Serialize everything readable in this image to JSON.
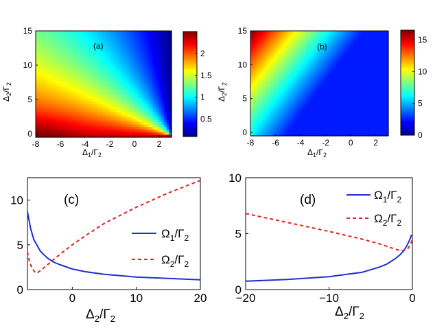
{
  "chart_data": [
    {
      "panel": "(a)",
      "type": "heatmap",
      "xlabel": "Δ1/Γ2",
      "ylabel": "Δ2/Γ2",
      "xlim": [
        -8,
        3
      ],
      "ylim": [
        -0.5,
        15
      ],
      "x_ticks": [
        "-8",
        "-6",
        "-4",
        "-2",
        "0",
        "2"
      ],
      "x_tick_values": [
        -8,
        -6,
        -4,
        -2,
        0,
        2
      ],
      "y_ticks": [
        "0",
        "5",
        "10",
        "15"
      ],
      "y_tick_values": [
        0,
        5,
        10,
        15
      ],
      "colorbar": {
        "range": [
          0.1,
          2.5
        ],
        "ticks": [
          "0.5",
          "1",
          "1.5",
          "2"
        ],
        "tick_values": [
          0.5,
          1,
          1.5,
          2
        ],
        "colormap": "jet"
      },
      "description_of_field": "max at lower-left (≈2.4), decreasing toward (3, 0) where value ≈0.1; iso-lines radiate from the point (3, 0)"
    },
    {
      "panel": "(b)",
      "type": "heatmap",
      "xlabel": "Δ1/Γ2",
      "ylabel": "Δ2/Γ2",
      "xlim": [
        -8,
        3
      ],
      "ylim": [
        -0.5,
        15
      ],
      "x_ticks": [
        "-8",
        "-6",
        "-4",
        "-2",
        "0",
        "2"
      ],
      "x_tick_values": [
        -8,
        -6,
        -4,
        -2,
        0,
        2
      ],
      "y_ticks": [
        "0",
        "5",
        "10",
        "15"
      ],
      "y_tick_values": [
        0,
        5,
        10,
        15
      ],
      "colorbar": {
        "range": [
          0,
          16.5
        ],
        "ticks": [
          "0",
          "5",
          "10",
          "15"
        ],
        "tick_values": [
          0,
          5,
          10,
          15
        ],
        "colormap": "jet"
      },
      "description_of_field": "max at upper-left (≈16), minimum ≈0 toward the right; curved iso-lines"
    },
    {
      "panel": "(c)",
      "type": "line",
      "xlabel": "Δ2/Γ2",
      "ylabel": "",
      "xlim": [
        -7,
        20
      ],
      "ylim": [
        0,
        12.5
      ],
      "x_ticks": [
        "0",
        "10",
        "20"
      ],
      "x_tick_values": [
        0,
        10,
        20
      ],
      "y_ticks": [
        "0",
        "5",
        "10"
      ],
      "y_tick_values": [
        0,
        5,
        10
      ],
      "legend_position": "right",
      "series": [
        {
          "name": "Ω1/Γ2",
          "style": "solid",
          "color": "#1f2fd0",
          "x": [
            -7,
            -6.5,
            -6,
            -5,
            -4,
            -3,
            -2,
            0,
            2,
            5,
            10,
            15,
            20
          ],
          "y": [
            8.7,
            6.8,
            5.6,
            4.3,
            3.6,
            3.1,
            2.8,
            2.3,
            2.0,
            1.7,
            1.4,
            1.25,
            1.1
          ]
        },
        {
          "name": "Ω2/Γ2",
          "style": "dashed",
          "color": "#e0201f",
          "x": [
            -7,
            -6.7,
            -6.3,
            -5.8,
            -5.4,
            -5,
            -4,
            -3,
            -2,
            0,
            2,
            5,
            10,
            15,
            20
          ],
          "y": [
            4.2,
            3.2,
            2.4,
            1.9,
            1.9,
            2.1,
            2.7,
            3.3,
            3.9,
            5.0,
            6.0,
            7.4,
            9.2,
            10.8,
            12.2
          ]
        }
      ]
    },
    {
      "panel": "(d)",
      "type": "line",
      "xlabel": "Δ2/Γ2",
      "ylabel": "",
      "xlim": [
        -20,
        0
      ],
      "ylim": [
        0,
        10
      ],
      "x_ticks": [
        "−20",
        "−10",
        "0"
      ],
      "x_tick_values": [
        -20,
        -10,
        0
      ],
      "y_ticks": [
        "0",
        "5",
        "10"
      ],
      "y_tick_values": [
        0,
        5,
        10
      ],
      "legend_position": "top-right",
      "series": [
        {
          "name": "Ω1/Γ2",
          "style": "solid",
          "color": "#1f2fd0",
          "x": [
            -20,
            -15,
            -10,
            -6,
            -4,
            -3,
            -2,
            -1.5,
            -1,
            -0.6,
            -0.3,
            -0.1
          ],
          "y": [
            0.75,
            0.9,
            1.15,
            1.55,
            2.0,
            2.3,
            2.8,
            3.1,
            3.5,
            4.0,
            4.5,
            4.9
          ]
        },
        {
          "name": "Ω2/Γ2",
          "style": "dashed",
          "color": "#e0201f",
          "x": [
            -20,
            -15,
            -10,
            -6,
            -4,
            -3,
            -2,
            -1.5,
            -1,
            -0.5,
            -0.2,
            0
          ],
          "y": [
            6.8,
            6.0,
            5.2,
            4.5,
            4.1,
            3.85,
            3.6,
            3.5,
            3.5,
            3.7,
            4.1,
            4.5
          ]
        }
      ]
    }
  ]
}
